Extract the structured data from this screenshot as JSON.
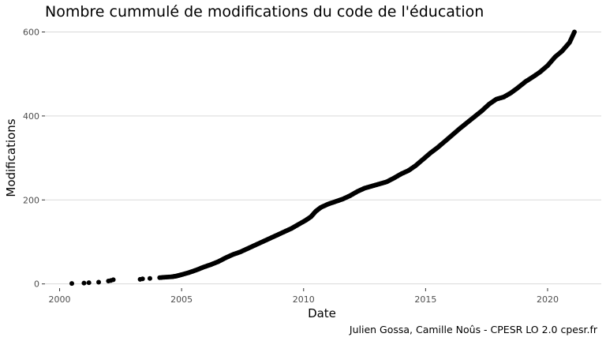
{
  "chart_data": {
    "type": "scatter",
    "title": "Nombre cummulé de modifications du code de l'éducation",
    "xlabel": "Date",
    "ylabel": "Modifications",
    "caption": "Julien Gossa, Camille Noûs - CPESR LO 2.0 cpesr.fr",
    "xlim": [
      1999.4,
      2022.2
    ],
    "ylim": [
      -10,
      616
    ],
    "x_ticks": [
      2000,
      2005,
      2010,
      2015,
      2020
    ],
    "x_tick_labels": [
      "2000",
      "2005",
      "2010",
      "2015",
      "2020"
    ],
    "y_ticks": [
      0,
      200,
      400,
      600
    ],
    "y_tick_labels": [
      "0",
      "200",
      "400",
      "600"
    ],
    "grid": true,
    "legend": "none",
    "point_color": "#000000",
    "points": [
      [
        2000.5,
        1
      ],
      [
        2001.0,
        2
      ],
      [
        2001.2,
        3
      ],
      [
        2001.6,
        4
      ],
      [
        2002.0,
        7
      ],
      [
        2002.1,
        8
      ],
      [
        2002.2,
        10
      ],
      [
        2003.3,
        11
      ],
      [
        2003.4,
        12
      ],
      [
        2003.7,
        13
      ],
      [
        2004.1,
        15
      ],
      [
        2004.6,
        17
      ],
      [
        2004.8,
        19
      ],
      [
        2005.0,
        22
      ],
      [
        2005.3,
        27
      ],
      [
        2005.6,
        33
      ],
      [
        2005.9,
        40
      ],
      [
        2006.2,
        46
      ],
      [
        2006.5,
        53
      ],
      [
        2006.8,
        62
      ],
      [
        2007.1,
        70
      ],
      [
        2007.4,
        76
      ],
      [
        2007.7,
        84
      ],
      [
        2008.0,
        92
      ],
      [
        2008.3,
        100
      ],
      [
        2008.6,
        108
      ],
      [
        2008.9,
        116
      ],
      [
        2009.2,
        124
      ],
      [
        2009.5,
        132
      ],
      [
        2009.8,
        142
      ],
      [
        2010.1,
        152
      ],
      [
        2010.3,
        160
      ],
      [
        2010.5,
        173
      ],
      [
        2010.7,
        182
      ],
      [
        2011.0,
        190
      ],
      [
        2011.3,
        196
      ],
      [
        2011.6,
        202
      ],
      [
        2011.9,
        210
      ],
      [
        2012.2,
        220
      ],
      [
        2012.5,
        228
      ],
      [
        2012.8,
        233
      ],
      [
        2013.1,
        238
      ],
      [
        2013.4,
        243
      ],
      [
        2013.7,
        252
      ],
      [
        2014.0,
        262
      ],
      [
        2014.3,
        270
      ],
      [
        2014.6,
        282
      ],
      [
        2014.9,
        297
      ],
      [
        2015.2,
        312
      ],
      [
        2015.5,
        325
      ],
      [
        2015.8,
        340
      ],
      [
        2016.1,
        355
      ],
      [
        2016.4,
        370
      ],
      [
        2016.7,
        384
      ],
      [
        2017.0,
        398
      ],
      [
        2017.3,
        412
      ],
      [
        2017.6,
        428
      ],
      [
        2017.9,
        440
      ],
      [
        2018.2,
        445
      ],
      [
        2018.5,
        455
      ],
      [
        2018.8,
        468
      ],
      [
        2019.1,
        482
      ],
      [
        2019.4,
        493
      ],
      [
        2019.7,
        505
      ],
      [
        2020.0,
        520
      ],
      [
        2020.3,
        540
      ],
      [
        2020.6,
        555
      ],
      [
        2020.9,
        575
      ],
      [
        2021.1,
        600
      ]
    ]
  }
}
